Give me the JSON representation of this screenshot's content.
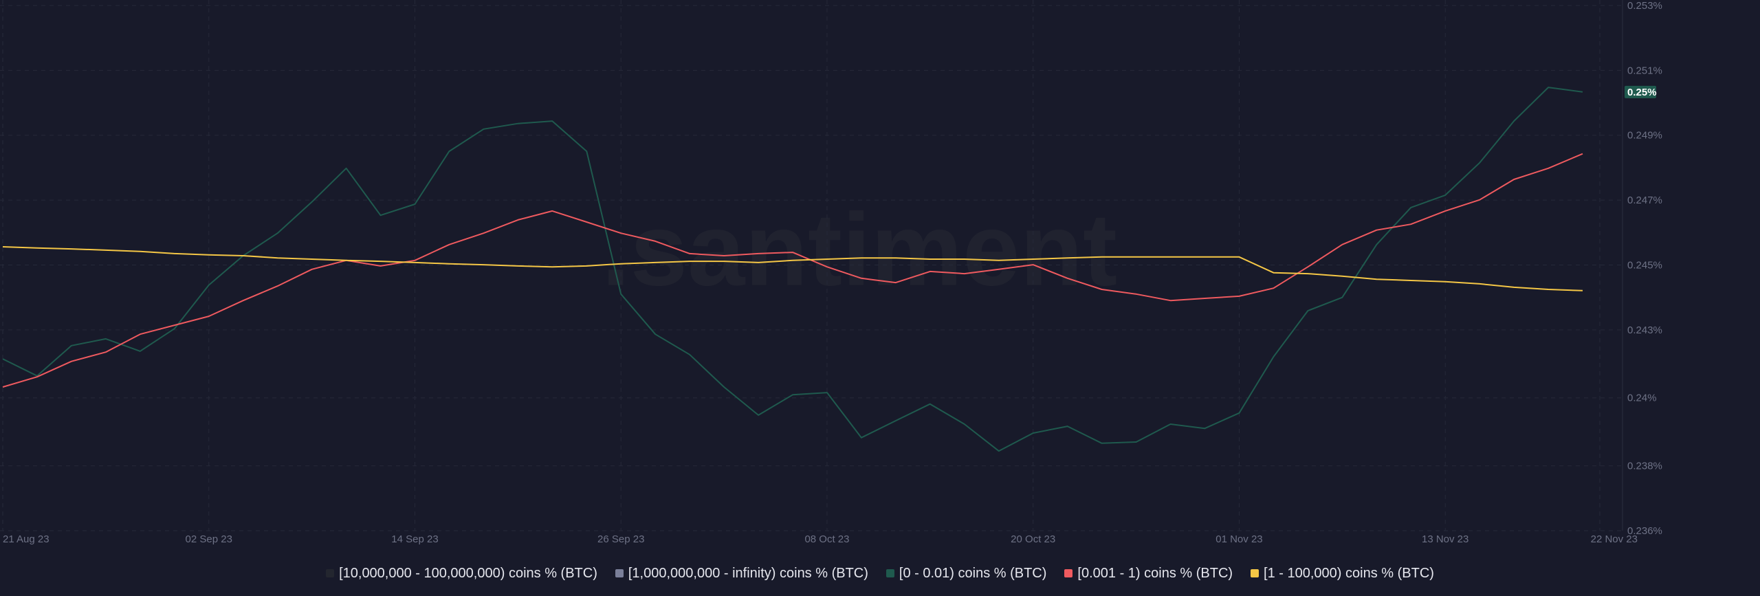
{
  "chart_data": {
    "type": "line",
    "watermark": ".santiment",
    "x": [
      "2023-08-21",
      "2023-08-23",
      "2023-08-25",
      "2023-08-27",
      "2023-08-29",
      "2023-08-31",
      "2023-09-02",
      "2023-09-04",
      "2023-09-06",
      "2023-09-08",
      "2023-09-10",
      "2023-09-12",
      "2023-09-14",
      "2023-09-16",
      "2023-09-18",
      "2023-09-20",
      "2023-09-22",
      "2023-09-24",
      "2023-09-26",
      "2023-09-28",
      "2023-09-30",
      "2023-10-02",
      "2023-10-04",
      "2023-10-06",
      "2023-10-08",
      "2023-10-10",
      "2023-10-12",
      "2023-10-14",
      "2023-10-16",
      "2023-10-18",
      "2023-10-20",
      "2023-10-22",
      "2023-10-24",
      "2023-10-26",
      "2023-10-28",
      "2023-10-30",
      "2023-11-01",
      "2023-11-03",
      "2023-11-05",
      "2023-11-07",
      "2023-11-09",
      "2023-11-11",
      "2023-11-13",
      "2023-11-15",
      "2023-11-17",
      "2023-11-19",
      "2023-11-21"
    ],
    "xlim": [
      "2023-08-21",
      "2023-11-22"
    ],
    "xticks": [
      {
        "value": "2023-08-21",
        "label": "21 Aug 23"
      },
      {
        "value": "2023-09-02",
        "label": "02 Sep 23"
      },
      {
        "value": "2023-09-14",
        "label": "14 Sep 23"
      },
      {
        "value": "2023-09-26",
        "label": "26 Sep 23"
      },
      {
        "value": "2023-10-08",
        "label": "08 Oct 23"
      },
      {
        "value": "2023-10-20",
        "label": "20 Oct 23"
      },
      {
        "value": "2023-11-01",
        "label": "01 Nov 23"
      },
      {
        "value": "2023-11-13",
        "label": "13 Nov 23"
      },
      {
        "value": "2023-11-22",
        "label": "22 Nov 23"
      }
    ],
    "ylim": [
      0.236,
      0.253
    ],
    "yticks": [
      {
        "value": 0.236,
        "label": "0.236%"
      },
      {
        "value": 0.2381,
        "label": "0.238%"
      },
      {
        "value": 0.2403,
        "label": "0.24%"
      },
      {
        "value": 0.2425,
        "label": "0.243%"
      },
      {
        "value": 0.2446,
        "label": "0.245%"
      },
      {
        "value": 0.2467,
        "label": "0.247%"
      },
      {
        "value": 0.2488,
        "label": "0.249%"
      },
      {
        "value": 0.2509,
        "label": "0.251%"
      },
      {
        "value": 0.253,
        "label": "0.253%"
      }
    ],
    "grid": true,
    "series": [
      {
        "name": "[10,000,000 - 100,000,000) coins % (BTC)",
        "color": "#23262f"
      },
      {
        "name": "[1,000,000,000 - infinity) coins % (BTC)",
        "color": "#7a7f99"
      },
      {
        "name": "[0 - 0.01) coins % (BTC)",
        "color": "#1f5a4e",
        "last_label": "0.25%",
        "values": [
          0.24156,
          0.24101,
          0.24199,
          0.24221,
          0.24181,
          0.24254,
          0.24395,
          0.2449,
          0.24563,
          0.24664,
          0.24773,
          0.24621,
          0.24657,
          0.24828,
          0.249,
          0.24918,
          0.24926,
          0.24828,
          0.24366,
          0.24236,
          0.2417,
          0.24065,
          0.23974,
          0.2404,
          0.24047,
          0.23901,
          0.23956,
          0.2401,
          0.23945,
          0.23858,
          0.23916,
          0.23938,
          0.23883,
          0.23887,
          0.23945,
          0.23931,
          0.23981,
          0.24163,
          0.24312,
          0.24355,
          0.24526,
          0.24646,
          0.24686,
          0.24791,
          0.24926,
          0.25035,
          0.2502
        ]
      },
      {
        "name": "[0.001 - 1) coins % (BTC)",
        "color": "#ef5a5f",
        "values": [
          0.24065,
          0.24098,
          0.24148,
          0.24178,
          0.24236,
          0.24265,
          0.24294,
          0.24345,
          0.24392,
          0.24446,
          0.24475,
          0.24457,
          0.24475,
          0.24526,
          0.24563,
          0.24606,
          0.24635,
          0.24599,
          0.24563,
          0.24537,
          0.24497,
          0.2449,
          0.24497,
          0.24501,
          0.24454,
          0.24417,
          0.24403,
          0.24439,
          0.24432,
          0.24446,
          0.24461,
          0.24417,
          0.24381,
          0.24366,
          0.24345,
          0.24352,
          0.24359,
          0.24385,
          0.24454,
          0.24526,
          0.24573,
          0.24592,
          0.24635,
          0.24671,
          0.24737,
          0.24773,
          0.2482
        ]
      },
      {
        "name": "[1 - 100,000) coins % (BTC)",
        "color": "#f5c746",
        "values": [
          0.24519,
          0.24515,
          0.24512,
          0.24508,
          0.24504,
          0.24497,
          0.24493,
          0.2449,
          0.24483,
          0.24479,
          0.24475,
          0.24472,
          0.24468,
          0.24464,
          0.24461,
          0.24457,
          0.24454,
          0.24457,
          0.24464,
          0.24468,
          0.24472,
          0.24472,
          0.24468,
          0.24475,
          0.24479,
          0.24483,
          0.24483,
          0.24479,
          0.24479,
          0.24475,
          0.24479,
          0.24483,
          0.24486,
          0.24486,
          0.24486,
          0.24486,
          0.24486,
          0.24435,
          0.24432,
          0.24424,
          0.24414,
          0.2441,
          0.24406,
          0.24399,
          0.24388,
          0.24381,
          0.24377
        ]
      }
    ]
  }
}
